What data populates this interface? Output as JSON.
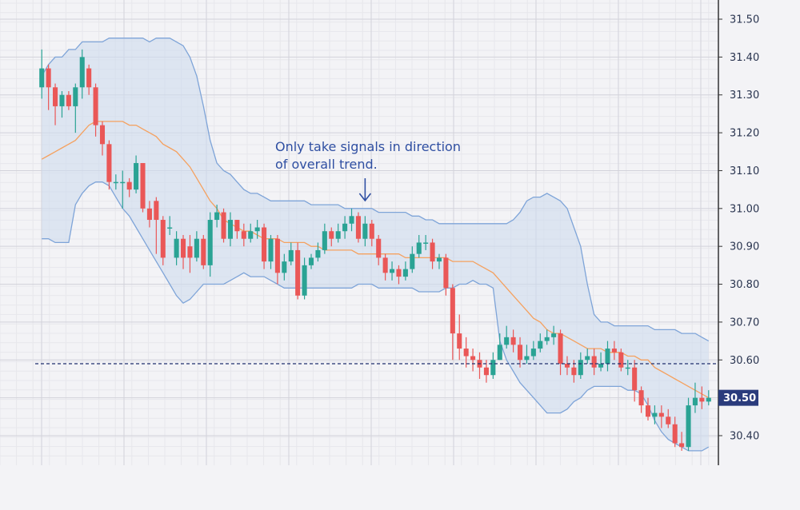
{
  "chart_data": {
    "type": "candlestick",
    "indicator": "bollinger-bands",
    "y_axis": {
      "position": "right",
      "ticks": [
        "31.50",
        "31.40",
        "31.30",
        "31.20",
        "31.10",
        "31.00",
        "30.90",
        "30.80",
        "30.70",
        "30.60",
        "30.40"
      ],
      "ylim": [
        30.33,
        31.55
      ]
    },
    "x": {
      "count": 100,
      "labels": "none"
    },
    "grid": "on",
    "current_price": {
      "value": 30.5,
      "label": "30.50"
    },
    "reference_line": {
      "value": 30.59,
      "style": "dashed"
    },
    "annotation": {
      "lines": [
        "Only take signals in direction",
        "of overall trend."
      ],
      "candle_index": 48
    },
    "colors": {
      "up": "#2aa394",
      "down": "#ea5757",
      "middle_band": "#f5a15f",
      "band_line": "#7ea4d8",
      "band_fill": "#cfdcef",
      "price_tag": "#2a3b7c",
      "annotation": "#2f4fa2",
      "axis": "#333333",
      "grid_major": "#d2d2da",
      "grid_minor": "#e7e7ec",
      "dashed_line": "#1f2e6e"
    },
    "bands": {
      "upper": [
        31.35,
        31.38,
        31.4,
        31.4,
        31.42,
        31.42,
        31.44,
        31.44,
        31.44,
        31.44,
        31.45,
        31.45,
        31.45,
        31.45,
        31.45,
        31.45,
        31.44,
        31.45,
        31.45,
        31.45,
        31.44,
        31.43,
        31.4,
        31.35,
        31.27,
        31.18,
        31.12,
        31.1,
        31.09,
        31.07,
        31.05,
        31.04,
        31.04,
        31.03,
        31.02,
        31.02,
        31.02,
        31.02,
        31.02,
        31.02,
        31.01,
        31.01,
        31.01,
        31.01,
        31.01,
        31.0,
        31.0,
        31.0,
        31.0,
        31.0,
        30.99,
        30.99,
        30.99,
        30.99,
        30.99,
        30.98,
        30.98,
        30.97,
        30.97,
        30.96,
        30.96,
        30.96,
        30.96,
        30.96,
        30.96,
        30.96,
        30.96,
        30.96,
        30.96,
        30.96,
        30.97,
        30.99,
        31.02,
        31.03,
        31.03,
        31.04,
        31.03,
        31.02,
        31.0,
        30.95,
        30.9,
        30.8,
        30.72,
        30.7,
        30.7,
        30.69,
        30.69,
        30.69,
        30.69,
        30.69,
        30.69,
        30.68,
        30.68,
        30.68,
        30.68,
        30.67,
        30.67,
        30.67,
        30.66,
        30.65
      ],
      "middle": [
        31.13,
        31.14,
        31.15,
        31.16,
        31.17,
        31.18,
        31.2,
        31.22,
        31.23,
        31.23,
        31.23,
        31.23,
        31.23,
        31.22,
        31.22,
        31.21,
        31.2,
        31.19,
        31.17,
        31.16,
        31.15,
        31.13,
        31.11,
        31.08,
        31.05,
        31.02,
        31.0,
        30.97,
        30.96,
        30.95,
        30.94,
        30.94,
        30.93,
        30.92,
        30.92,
        30.92,
        30.91,
        30.91,
        30.91,
        30.91,
        30.9,
        30.9,
        30.89,
        30.89,
        30.89,
        30.89,
        30.89,
        30.88,
        30.88,
        30.88,
        30.88,
        30.88,
        30.88,
        30.88,
        30.87,
        30.87,
        30.87,
        30.87,
        30.87,
        30.87,
        30.87,
        30.86,
        30.86,
        30.86,
        30.86,
        30.85,
        30.84,
        30.83,
        30.81,
        30.79,
        30.77,
        30.75,
        30.73,
        30.71,
        30.7,
        30.68,
        30.67,
        30.67,
        30.66,
        30.65,
        30.64,
        30.63,
        30.63,
        30.63,
        30.62,
        30.62,
        30.62,
        30.61,
        30.61,
        30.6,
        30.6,
        30.58,
        30.57,
        30.56,
        30.55,
        30.54,
        30.53,
        30.52,
        30.51,
        30.5
      ],
      "lower": [
        30.92,
        30.92,
        30.91,
        30.91,
        30.91,
        31.01,
        31.04,
        31.06,
        31.07,
        31.07,
        31.06,
        31.03,
        31.0,
        30.98,
        30.95,
        30.92,
        30.89,
        30.86,
        30.83,
        30.8,
        30.77,
        30.75,
        30.76,
        30.78,
        30.8,
        30.8,
        30.8,
        30.8,
        30.81,
        30.82,
        30.83,
        30.82,
        30.82,
        30.82,
        30.81,
        30.8,
        30.79,
        30.79,
        30.79,
        30.79,
        30.79,
        30.79,
        30.79,
        30.79,
        30.79,
        30.79,
        30.79,
        30.8,
        30.8,
        30.8,
        30.79,
        30.79,
        30.79,
        30.79,
        30.79,
        30.79,
        30.78,
        30.78,
        30.78,
        30.78,
        30.79,
        30.79,
        30.8,
        30.8,
        30.81,
        30.8,
        30.8,
        30.79,
        30.65,
        30.6,
        30.57,
        30.54,
        30.52,
        30.5,
        30.48,
        30.46,
        30.46,
        30.46,
        30.47,
        30.49,
        30.5,
        30.52,
        30.53,
        30.53,
        30.53,
        30.53,
        30.53,
        30.52,
        30.52,
        30.51,
        30.48,
        30.44,
        30.41,
        30.39,
        30.38,
        30.37,
        30.36,
        30.36,
        30.36,
        30.37
      ]
    },
    "candles": {
      "open": [
        31.32,
        31.37,
        31.32,
        31.27,
        31.3,
        31.27,
        31.32,
        31.37,
        31.32,
        31.22,
        31.17,
        31.07,
        31.07,
        31.07,
        31.05,
        31.12,
        31.0,
        31.02,
        30.97,
        30.95,
        30.87,
        30.92,
        30.9,
        30.87,
        30.92,
        30.85,
        30.97,
        30.99,
        30.92,
        30.97,
        30.94,
        30.92,
        30.94,
        30.95,
        30.86,
        30.92,
        30.83,
        30.86,
        30.89,
        30.77,
        30.85,
        30.87,
        30.89,
        30.94,
        30.92,
        30.94,
        30.96,
        30.98,
        30.92,
        30.96,
        30.92,
        30.87,
        30.83,
        30.84,
        30.82,
        30.84,
        30.88,
        30.91,
        30.91,
        30.86,
        30.87,
        30.79,
        30.67,
        30.63,
        30.61,
        30.6,
        30.58,
        30.56,
        30.6,
        30.64,
        30.66,
        30.64,
        30.6,
        30.61,
        30.63,
        30.65,
        30.66,
        30.67,
        30.59,
        30.58,
        30.56,
        30.6,
        30.61,
        30.58,
        30.59,
        30.63,
        30.62,
        30.58,
        30.58,
        30.52,
        30.48,
        30.45,
        30.46,
        30.45,
        30.43,
        30.38,
        30.37,
        30.48,
        30.5,
        30.49
      ],
      "close": [
        31.37,
        31.32,
        31.27,
        31.3,
        31.27,
        31.32,
        31.4,
        31.32,
        31.22,
        31.17,
        31.07,
        31.07,
        31.07,
        31.05,
        31.12,
        31.0,
        30.97,
        30.97,
        30.87,
        30.95,
        30.92,
        30.87,
        30.87,
        30.92,
        30.85,
        30.97,
        30.99,
        30.92,
        30.97,
        30.94,
        30.92,
        30.94,
        30.95,
        30.86,
        30.92,
        30.83,
        30.86,
        30.89,
        30.77,
        30.85,
        30.87,
        30.89,
        30.94,
        30.92,
        30.94,
        30.96,
        30.98,
        30.92,
        30.96,
        30.92,
        30.87,
        30.83,
        30.84,
        30.82,
        30.84,
        30.88,
        30.91,
        30.91,
        30.86,
        30.87,
        30.79,
        30.67,
        30.63,
        30.61,
        30.6,
        30.58,
        30.56,
        30.6,
        30.64,
        30.66,
        30.64,
        30.6,
        30.61,
        30.63,
        30.65,
        30.66,
        30.67,
        30.59,
        30.58,
        30.56,
        30.6,
        30.61,
        30.58,
        30.59,
        30.63,
        30.62,
        30.58,
        30.58,
        30.52,
        30.48,
        30.45,
        30.46,
        30.45,
        30.43,
        30.38,
        30.37,
        30.48,
        30.5,
        30.49,
        30.5
      ],
      "high": [
        31.42,
        31.38,
        31.33,
        31.31,
        31.31,
        31.33,
        31.42,
        31.38,
        31.33,
        31.23,
        31.18,
        31.09,
        31.1,
        31.08,
        31.14,
        31.12,
        31.02,
        31.03,
        30.98,
        30.98,
        30.94,
        30.93,
        30.93,
        30.94,
        30.93,
        30.99,
        31.01,
        31.0,
        30.99,
        30.97,
        30.96,
        30.96,
        30.97,
        30.96,
        30.93,
        30.93,
        30.88,
        30.91,
        30.91,
        30.87,
        30.88,
        30.91,
        30.96,
        30.95,
        30.96,
        30.98,
        31.0,
        30.99,
        30.98,
        30.97,
        30.93,
        30.88,
        30.86,
        30.85,
        30.86,
        30.9,
        30.93,
        30.93,
        30.92,
        30.88,
        30.88,
        30.8,
        30.72,
        30.66,
        30.63,
        30.62,
        30.6,
        30.62,
        30.67,
        30.69,
        30.68,
        30.66,
        30.64,
        30.65,
        30.67,
        30.68,
        30.69,
        30.68,
        30.61,
        30.6,
        30.62,
        30.63,
        30.63,
        30.62,
        30.65,
        30.65,
        30.63,
        30.6,
        30.6,
        30.53,
        30.5,
        30.48,
        30.48,
        30.47,
        30.45,
        30.41,
        30.5,
        30.54,
        30.53,
        30.52
      ],
      "low": [
        31.29,
        31.26,
        31.22,
        31.24,
        31.26,
        31.2,
        31.29,
        31.3,
        31.19,
        31.14,
        31.05,
        31.05,
        31.0,
        31.03,
        31.04,
        30.99,
        30.95,
        30.88,
        30.85,
        30.93,
        30.85,
        30.84,
        30.83,
        30.86,
        30.84,
        30.82,
        30.95,
        30.91,
        30.9,
        30.92,
        30.9,
        30.91,
        30.92,
        30.84,
        30.84,
        30.8,
        30.81,
        30.85,
        30.76,
        30.76,
        30.84,
        30.86,
        30.88,
        30.9,
        30.91,
        30.92,
        30.94,
        30.91,
        30.9,
        30.9,
        30.85,
        30.81,
        30.81,
        30.8,
        30.81,
        30.83,
        30.87,
        30.89,
        30.84,
        30.84,
        30.77,
        30.6,
        30.6,
        30.58,
        30.57,
        30.55,
        30.54,
        30.55,
        30.6,
        30.63,
        30.62,
        30.58,
        30.59,
        30.6,
        30.62,
        30.64,
        30.64,
        30.56,
        30.56,
        30.54,
        30.55,
        30.59,
        30.56,
        30.57,
        30.57,
        30.6,
        30.57,
        30.56,
        30.49,
        30.46,
        30.44,
        30.43,
        30.42,
        30.42,
        30.37,
        30.36,
        30.36,
        30.46,
        30.47,
        30.48
      ]
    }
  }
}
